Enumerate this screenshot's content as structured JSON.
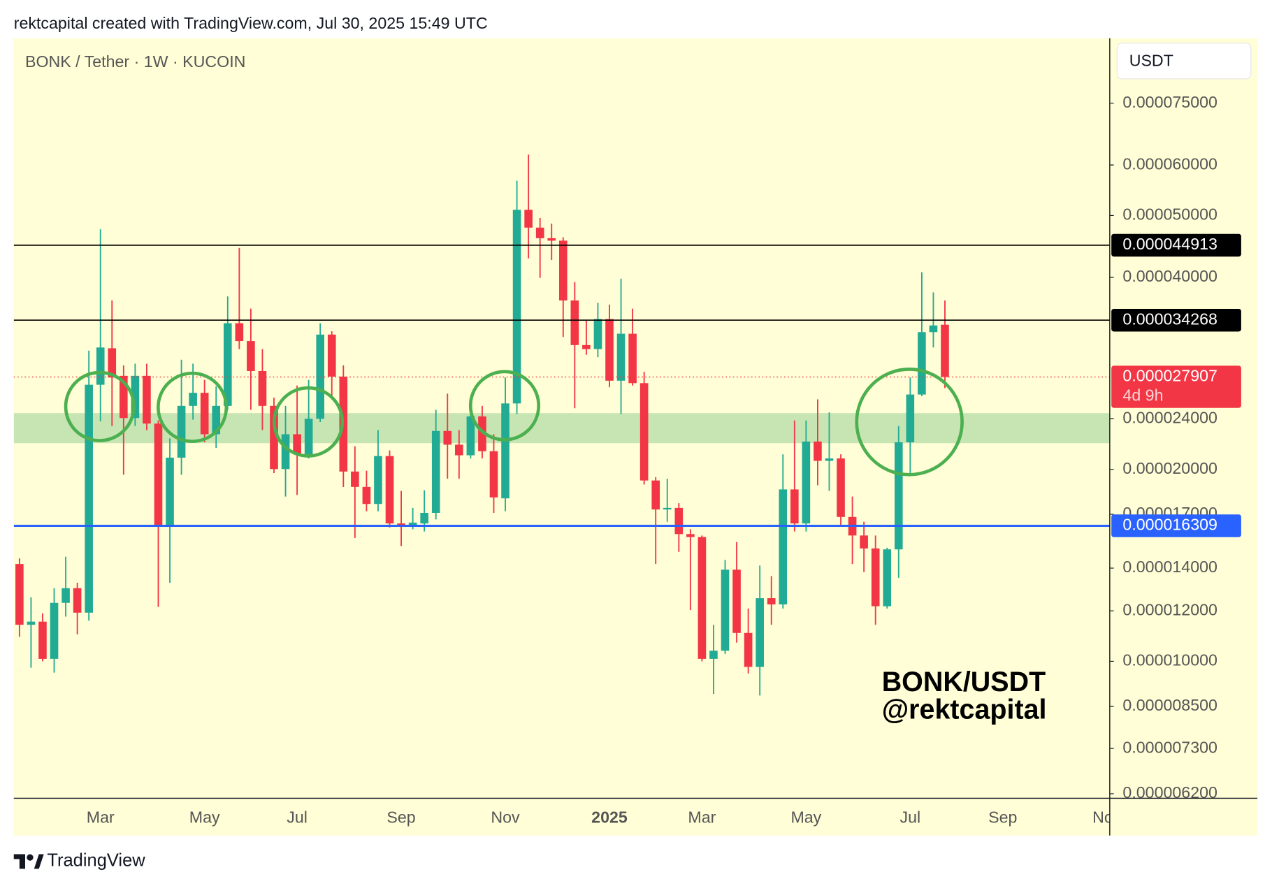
{
  "header": "rektcapital created with TradingView.com, Jul 30, 2025 15:49 UTC",
  "footer": "TradingView",
  "chart_data": {
    "type": "candlestick",
    "title": "BONK / Tether · 1W · KUCOIN",
    "y_axis_label": "USDT",
    "categories": [
      null,
      null,
      null,
      null,
      null,
      null,
      null,
      "Mar",
      null,
      null,
      null,
      null,
      null,
      null,
      null,
      null,
      "May",
      null,
      null,
      null,
      null,
      null,
      null,
      null,
      "Jul",
      null,
      null,
      null,
      null,
      null,
      null,
      null,
      null,
      "Sep",
      null,
      null,
      null,
      null,
      null,
      null,
      null,
      null,
      "Nov",
      null,
      null,
      null,
      null,
      null,
      null,
      null,
      null,
      "2025",
      null,
      null,
      null,
      null,
      null,
      null,
      null,
      "Mar",
      null,
      null,
      null,
      null,
      null,
      null,
      null,
      null,
      "May",
      null,
      null,
      null,
      null,
      null,
      null,
      null,
      null,
      "Jul",
      null,
      null,
      null,
      null,
      null,
      null,
      null,
      "Sep",
      null,
      null,
      null,
      null,
      null,
      null,
      null,
      null,
      "Nov"
    ],
    "open": [
      1.421e-05,
      1.141e-05,
      1.154e-05,
      1.009e-05,
      1.235e-05,
      1.302e-05,
      1.192e-05,
      2.714e-05,
      3.096e-05,
      2.803e-05,
      2.407e-05,
      2.803e-05,
      2.359e-05,
      1.631e-05,
      2.086e-05,
      2.515e-05,
      2.636e-05,
      2.27e-05,
      2.515e-05,
      3.389e-05,
      3.178e-05,
      2.852e-05,
      2.515e-05,
      2.002e-05,
      2.27e-05,
      2.111e-05,
      2.4e-05,
      3.253e-05,
      2.795e-05,
      1.984e-05,
      1.877e-05,
      1.765e-05,
      2.098e-05,
      1.645e-05,
      1.635e-05,
      1.645e-05,
      1.709e-05,
      2.297e-05,
      2.186e-05,
      2.104e-05,
      2.421e-05,
      2.135e-05,
      1.801e-05,
      2.537e-05,
      5.104e-05,
      4.786e-05,
      4.607e-05,
      4.566e-05,
      3.679e-05,
      3.132e-05,
      3.087e-05,
      3.44e-05,
      2.754e-05,
      3.263e-05,
      2.73e-05,
      1.921e-05,
      1.73e-05,
      1.74e-05,
      1.583e-05,
      1.566e-05,
      1.009e-05,
      1.039e-05,
      1.392e-05,
      1.108e-05,
      9.8e-06,
      1.256e-05,
      1.228e-05,
      1.86e-05,
      1.645e-05,
      2.211e-05,
      2.062e-05,
      2.08e-05,
      1.684e-05,
      1.575e-05,
      1.503e-05,
      1.22e-05,
      1.498e-05,
      2.205e-05,
      2.62e-05,
      3.282e-05,
      3.371e-05,
      null,
      null,
      null,
      null,
      null,
      null,
      null,
      null,
      null,
      null,
      null,
      null,
      null,
      null
    ],
    "high": [
      1.45e-05,
      1.26e-05,
      1.189e-05,
      1.302e-05,
      1.459e-05,
      1.328e-05,
      3.069e-05,
      4.758e-05,
      3.679e-05,
      2.911e-05,
      2.928e-05,
      2.928e-05,
      2.386e-05,
      2.237e-05,
      2.971e-05,
      2.928e-05,
      2.762e-05,
      2.698e-05,
      3.733e-05,
      4.449e-05,
      3.573e-05,
      3.087e-05,
      2.59e-05,
      2.515e-05,
      2.706e-05,
      2.762e-05,
      3.389e-05,
      3.292e-05,
      2.911e-05,
      2.173e-05,
      1.99e-05,
      2.304e-05,
      2.141e-05,
      1.85e-05,
      1.74e-05,
      1.855e-05,
      2.479e-05,
      2.628e-05,
      2.304e-05,
      2.479e-05,
      2.515e-05,
      2.27e-05,
      2.786e-05,
      5.67e-05,
      6.23e-05,
      4.956e-05,
      4.856e-05,
      4.621e-05,
      3.934e-05,
      3.419e-05,
      3.647e-05,
      3.625e-05,
      3.981e-05,
      3.573e-05,
      2.844e-05,
      1.944e-05,
      1.933e-05,
      1.77e-05,
      1.611e-05,
      1.575e-05,
      1.141e-05,
      1.442e-05,
      1.538e-05,
      1.21e-05,
      1.413e-05,
      1.36e-05,
      2.111e-05,
      2.386e-05,
      2.386e-05,
      2.575e-05,
      2.456e-05,
      2.111e-05,
      1.813e-05,
      1.655e-05,
      1.575e-05,
      1.507e-05,
      2.338e-05,
      2.786e-05,
      4.075e-05,
      3.788e-05,
      3.679e-05,
      null,
      null,
      null,
      null,
      null,
      null,
      null,
      null,
      null,
      null,
      null,
      null,
      null,
      null
    ],
    "low": [
      1.092e-05,
      9.77e-06,
      1e-05,
      9.6e-06,
      1.175e-05,
      1.102e-05,
      1.158e-05,
      2.379e-05,
      2.338e-05,
      1.961e-05,
      2.338e-05,
      2.304e-05,
      1.217e-05,
      1.328e-05,
      1.961e-05,
      2.393e-05,
      2.205e-05,
      2.16e-05,
      2.479e-05,
      3.087e-05,
      2.479e-05,
      2.304e-05,
      1.973e-05,
      1.813e-05,
      1.823e-05,
      2.08e-05,
      2.372e-05,
      2.575e-05,
      1.877e-05,
      1.561e-05,
      1.719e-05,
      1.719e-05,
      1.621e-05,
      1.516e-05,
      1.611e-05,
      1.598e-05,
      1.669e-05,
      1.933e-05,
      1.933e-05,
      2.08e-05,
      2.08e-05,
      1.709e-05,
      1.719e-05,
      2.443e-05,
      4.283e-05,
      3.993e-05,
      4.258e-05,
      3.225e-05,
      2.493e-05,
      3.024e-05,
      2.998e-05,
      2.69e-05,
      2.443e-05,
      2.706e-05,
      1.893e-05,
      1.421e-05,
      1.655e-05,
      1.485e-05,
      1.203e-05,
      1e-05,
      8.89e-06,
      1.027e-05,
      1.07e-05,
      9.57e-06,
      8.84e-06,
      1.141e-05,
      1.21e-05,
      1.598e-05,
      1.598e-05,
      1.888e-05,
      1.85e-05,
      1.631e-05,
      1.421e-05,
      1.38e-05,
      1.141e-05,
      1.21e-05,
      1.352e-05,
      1.973e-05,
      2.605e-05,
      3.105e-05,
      2.682e-05,
      null,
      null,
      null,
      null,
      null,
      null,
      null,
      null,
      null,
      null,
      null,
      null,
      null,
      null
    ],
    "close": [
      1.141e-05,
      1.154e-05,
      1.009e-05,
      1.235e-05,
      1.302e-05,
      1.192e-05,
      2.714e-05,
      3.105e-05,
      2.786e-05,
      2.407e-05,
      2.803e-05,
      2.359e-05,
      1.631e-05,
      2.086e-05,
      2.515e-05,
      2.636e-05,
      2.27e-05,
      2.515e-05,
      3.389e-05,
      3.178e-05,
      2.852e-05,
      2.515e-05,
      2.002e-05,
      2.27e-05,
      2.111e-05,
      2.4e-05,
      3.253e-05,
      2.795e-05,
      1.984e-05,
      1.877e-05,
      1.765e-05,
      2.098e-05,
      1.645e-05,
      1.635e-05,
      1.65e-05,
      1.709e-05,
      2.297e-05,
      2.186e-05,
      2.104e-05,
      2.421e-05,
      2.135e-05,
      1.807e-05,
      2.537e-05,
      5.104e-05,
      4.786e-05,
      4.607e-05,
      4.566e-05,
      3.679e-05,
      3.132e-05,
      3.087e-05,
      3.44e-05,
      2.754e-05,
      3.263e-05,
      2.73e-05,
      1.921e-05,
      1.73e-05,
      1.74e-05,
      1.583e-05,
      1.566e-05,
      1.009e-05,
      1.039e-05,
      1.392e-05,
      1.108e-05,
      9.8e-06,
      1.256e-05,
      1.228e-05,
      1.86e-05,
      1.645e-05,
      2.211e-05,
      2.062e-05,
      2.08e-05,
      1.684e-05,
      1.575e-05,
      1.503e-05,
      1.22e-05,
      1.498e-05,
      2.205e-05,
      2.62e-05,
      3.282e-05,
      3.362e-05,
      2.7907e-05,
      null,
      null,
      null,
      null,
      null,
      null,
      null,
      null,
      null,
      null,
      null,
      null,
      null,
      null
    ],
    "up_color": "#22ab94",
    "down_color": "#f23645",
    "log_y": true,
    "ylim": [
      6.1e-06,
      9.48e-05
    ],
    "yticks": [
      {
        "value": 7.5e-05,
        "label": "0.000075000"
      },
      {
        "value": 6e-05,
        "label": "0.000060000"
      },
      {
        "value": 5e-05,
        "label": "0.000050000"
      },
      {
        "value": 4e-05,
        "label": "0.000040000"
      },
      {
        "value": 2.4e-05,
        "label": "0.000024000"
      },
      {
        "value": 2e-05,
        "label": "0.000020000"
      },
      {
        "value": 1.7e-05,
        "label": "0.000017000"
      },
      {
        "value": 1.4e-05,
        "label": "0.000014000"
      },
      {
        "value": 1.2e-05,
        "label": "0.000012000"
      },
      {
        "value": 1e-05,
        "label": "0.000010000"
      },
      {
        "value": 8.5e-06,
        "label": "0.000008500"
      },
      {
        "value": 7.3e-06,
        "label": "0.000007300"
      },
      {
        "value": 6.2e-06,
        "label": "0.000006200"
      }
    ],
    "levels": [
      {
        "value": 4.4913e-05,
        "color": "#000000"
      },
      {
        "value": 3.4268e-05,
        "color": "#000000"
      },
      {
        "value": 1.6309e-05,
        "color": "#2962ff"
      }
    ],
    "last_price": {
      "countdown": "4d 9h",
      "color": "#f23645"
    },
    "zones": [
      {
        "from": 2.198e-05,
        "to": 2.45e-05,
        "color": "#c6e5b3"
      }
    ],
    "annotations": [
      "BONK/USDT",
      "@rektcapital"
    ]
  }
}
